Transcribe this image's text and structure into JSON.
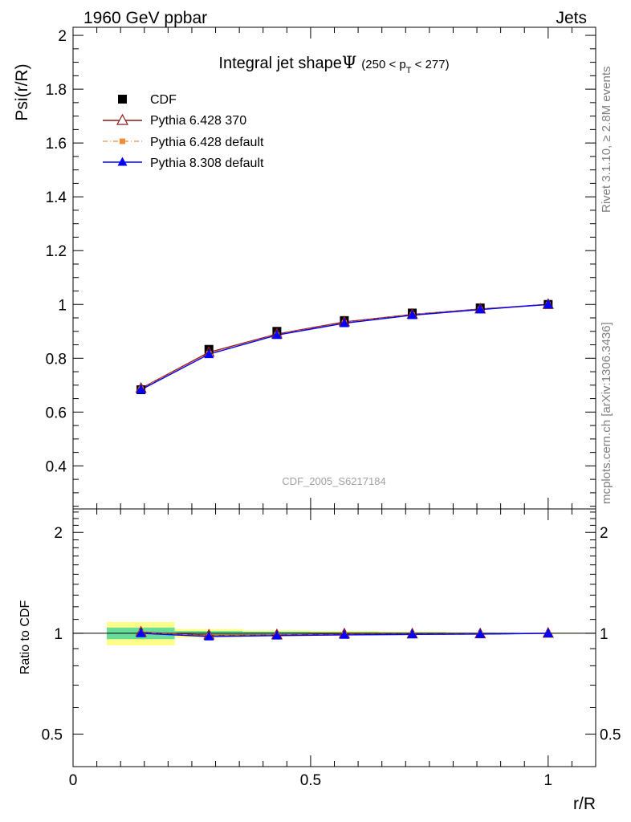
{
  "header": {
    "left": "1960 GeV ppbar",
    "right": "Jets",
    "side_top": "Rivet 3.1.10, ≥ 2.8M events",
    "side_bottom": "mcplots.cern.ch [arXiv:1306.3436]"
  },
  "chart_data": [
    {
      "type": "line",
      "title_main": "Integral jet shape",
      "title_symbol": "Ψ",
      "title_cut_pre": "(250 < p",
      "title_cut_sub": "T",
      "title_cut_post": " < 277)",
      "ylabel": "Psi(r/R)",
      "xlabel": "r/R",
      "watermark": "CDF_2005_S6217184",
      "xlim": [
        0,
        1.1
      ],
      "ylim": [
        0.24,
        2.03
      ],
      "xticks": [
        0,
        0.5,
        1
      ],
      "xtick_labels": [
        "0",
        "0.5",
        "1"
      ],
      "yticks": [
        0.4,
        0.6,
        0.8,
        1,
        1.2,
        1.4,
        1.6,
        1.8,
        2
      ],
      "ytick_labels": [
        "0.4",
        "0.6",
        "0.8",
        "1",
        "1.2",
        "1.4",
        "1.6",
        "1.8",
        "2"
      ],
      "x": [
        0.143,
        0.286,
        0.429,
        0.571,
        0.714,
        0.857,
        1.0
      ],
      "series": [
        {
          "name": "CDF",
          "color": "#000000",
          "marker": "square",
          "values": [
            0.683,
            0.833,
            0.9,
            0.94,
            0.968,
            0.987,
            1.0
          ]
        },
        {
          "name": "Pythia 6.428 370",
          "color": "#8b1a1a",
          "marker": "triangle-open",
          "values": [
            0.688,
            0.822,
            0.89,
            0.935,
            0.963,
            0.983,
            1.0
          ]
        },
        {
          "name": "Pythia 6.428 default",
          "color": "#f58a3c",
          "marker": "square-small",
          "dash": true,
          "values": [
            0.686,
            0.818,
            0.888,
            0.932,
            0.962,
            0.982,
            1.0
          ]
        },
        {
          "name": "Pythia 8.308 default",
          "color": "#0000ff",
          "marker": "triangle",
          "values": [
            0.683,
            0.815,
            0.886,
            0.93,
            0.96,
            0.981,
            1.0
          ]
        }
      ],
      "legend_position": "top-left"
    },
    {
      "type": "line",
      "ylabel": "Ratio to CDF",
      "xlim": [
        0,
        1.1
      ],
      "ylim": [
        0.4,
        2.35
      ],
      "ytick_labels": [
        "0.5",
        "1",
        "2"
      ],
      "yticks": [
        0.5,
        1,
        2
      ],
      "x": [
        0.143,
        0.286,
        0.429,
        0.571,
        0.714,
        0.857,
        1.0
      ],
      "band_edges": [
        0.071,
        0.214,
        0.357,
        0.5,
        0.643,
        0.786,
        0.929,
        1.071
      ],
      "band_inner": [
        0.04,
        0.015,
        0.01,
        0.008,
        0.006,
        0.004,
        0.002
      ],
      "band_outer": [
        0.08,
        0.03,
        0.02,
        0.015,
        0.01,
        0.006,
        0.003
      ],
      "band_inner_color": "#66dd99",
      "band_outer_color": "#ffff88",
      "series": [
        {
          "name": "Pythia 6.428 370",
          "color": "#8b1a1a",
          "marker": "triangle-open",
          "values": [
            1.007,
            0.987,
            0.989,
            0.995,
            0.995,
            0.996,
            1.0
          ]
        },
        {
          "name": "Pythia 6.428 default",
          "color": "#f58a3c",
          "marker": "square-small",
          "dash": true,
          "values": [
            1.004,
            0.982,
            0.987,
            0.991,
            0.994,
            0.995,
            1.0
          ]
        },
        {
          "name": "Pythia 8.308 default",
          "color": "#0000ff",
          "marker": "triangle",
          "values": [
            1.0,
            0.978,
            0.984,
            0.989,
            0.992,
            0.994,
            1.0
          ]
        }
      ]
    }
  ]
}
